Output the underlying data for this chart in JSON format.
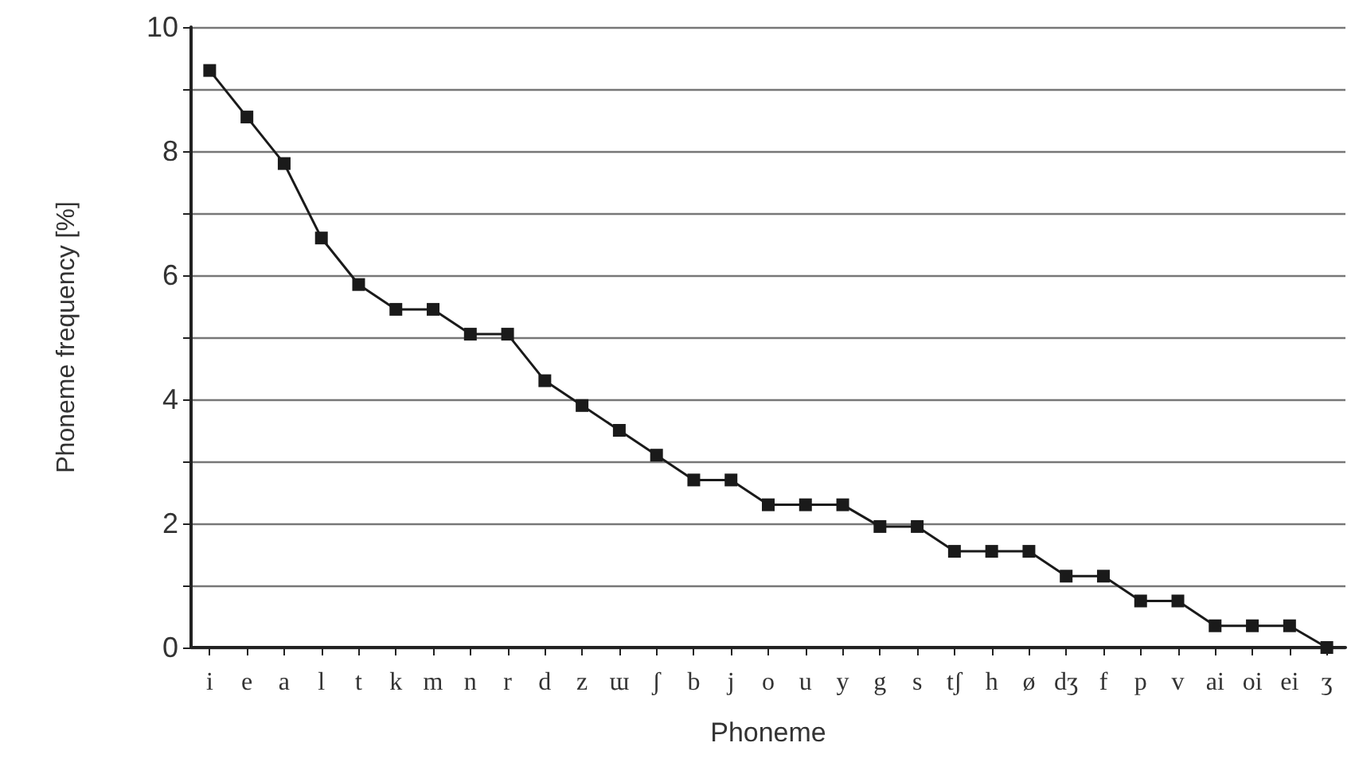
{
  "chart_data": {
    "type": "line",
    "xlabel": "Phoneme",
    "ylabel": "Phoneme frequency [%]",
    "categories": [
      "i",
      "e",
      "a",
      "l",
      "t",
      "k",
      "m",
      "n",
      "r",
      "d",
      "z",
      "ɯ",
      "ʃ",
      "b",
      "j",
      "o",
      "u",
      "y",
      "g",
      "s",
      "tʃ",
      "h",
      "ø",
      "dʒ",
      "f",
      "p",
      "v",
      "ai",
      "oi",
      "ei",
      "ʒ"
    ],
    "series": [
      {
        "color": "#1a1a1a",
        "values": [
          9.3,
          8.55,
          7.8,
          6.6,
          5.85,
          5.45,
          5.45,
          5.05,
          5.05,
          4.3,
          3.9,
          3.5,
          3.1,
          2.7,
          2.7,
          2.3,
          2.3,
          2.3,
          1.95,
          1.95,
          1.55,
          1.55,
          1.55,
          1.15,
          1.15,
          0.75,
          0.75,
          0.35,
          0.35,
          0.35,
          0
        ]
      }
    ],
    "ylim": [
      0,
      10
    ],
    "yticks": [
      0,
      {
        "value": 1,
        "label": null
      },
      2,
      {
        "value": 3,
        "label": null
      },
      4,
      {
        "value": 5,
        "label": null
      },
      6,
      {
        "value": 7,
        "label": null
      },
      8,
      {
        "value": 9,
        "label": null
      },
      10
    ],
    "grid": "y",
    "marker": "square",
    "line_style": "solid"
  }
}
